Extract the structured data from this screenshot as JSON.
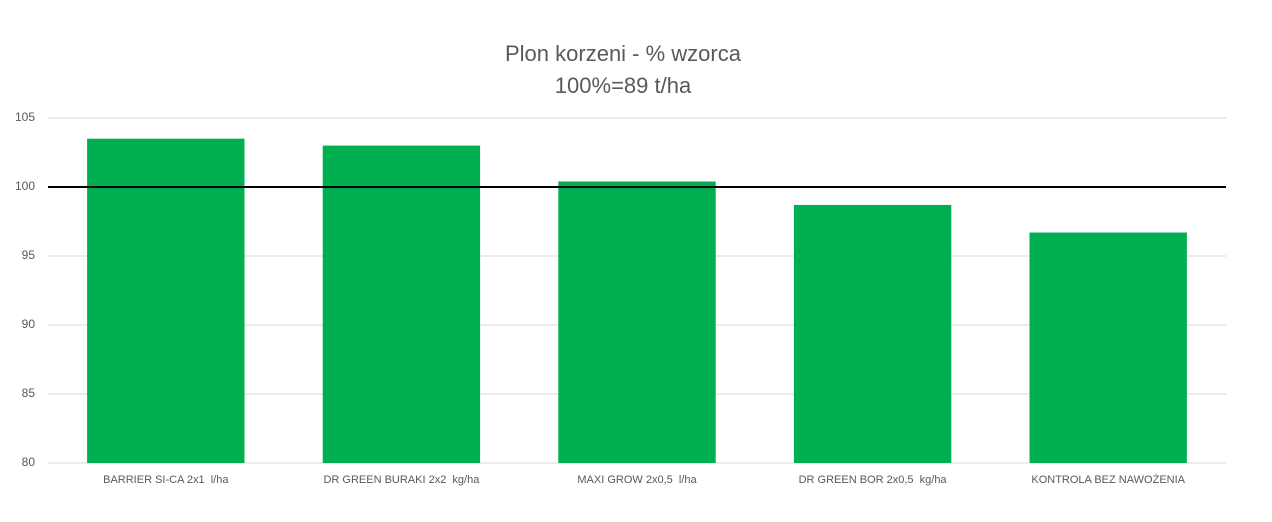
{
  "chart_data": {
    "type": "bar",
    "title": "Plon korzeni - % wzorca",
    "subtitle": "100%=89 t/ha",
    "categories": [
      "BARRIER SI-CA 2x1  l/ha",
      "DR GREEN BURAKI 2x2  kg/ha",
      "MAXI GROW 2x0,5  l/ha",
      "DR GREEN BOR 2x0,5  kg/ha",
      "KONTROLA BEZ NAWOŻENIA"
    ],
    "values": [
      103.5,
      103.0,
      100.4,
      98.7,
      96.7
    ],
    "color": "#00b050",
    "reference_line": 100,
    "reference_color": "#000000",
    "ylim": [
      80,
      105
    ],
    "yticks": [
      80,
      85,
      90,
      95,
      100,
      105
    ],
    "grid": true
  }
}
